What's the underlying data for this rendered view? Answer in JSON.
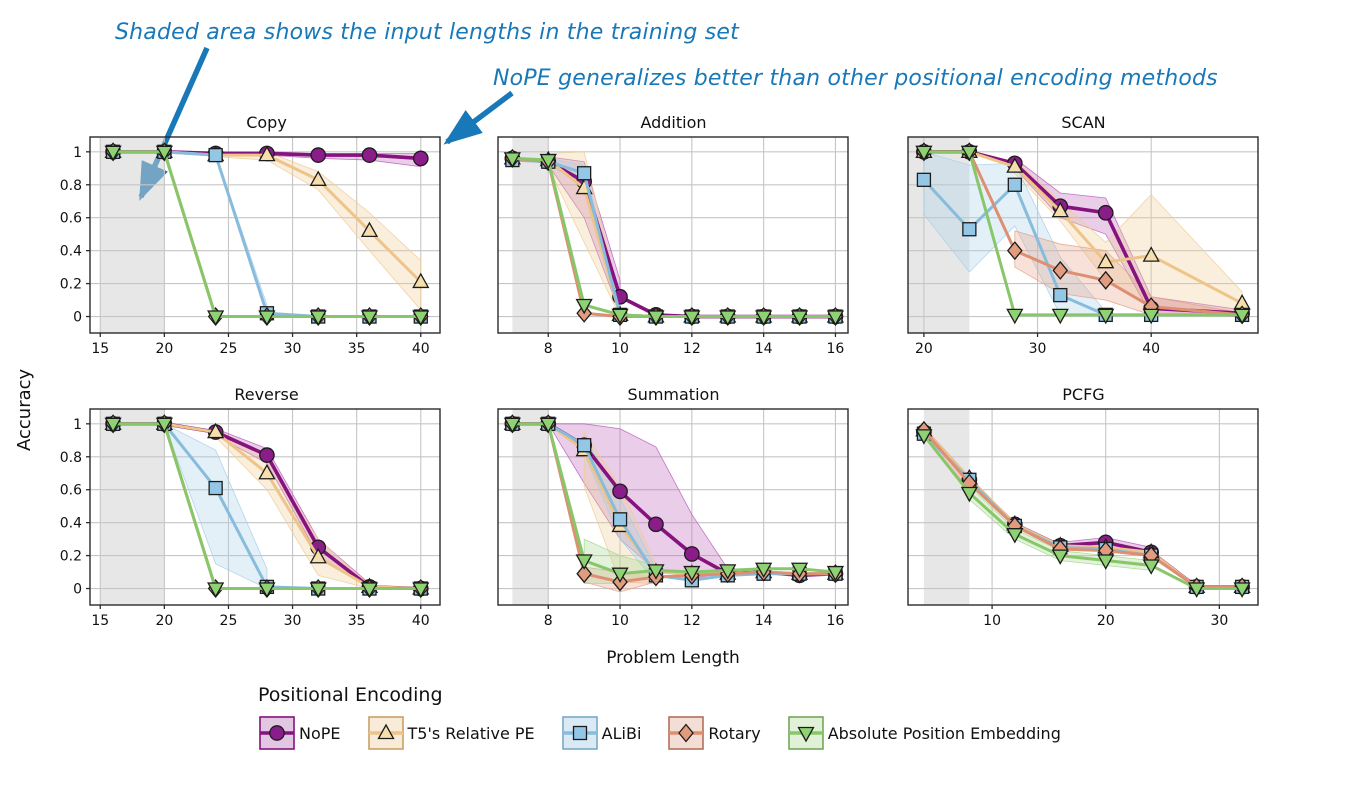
{
  "annotations": {
    "note1": "Shaded area shows the input lengths in the training set",
    "note2": "NoPE generalizes better than other positional encoding methods",
    "color": "#1878b8"
  },
  "ylabel": "Accuracy",
  "xlabel": "Problem Length",
  "legend": {
    "title": "Positional Encoding",
    "order": [
      "nope",
      "t5",
      "alibi",
      "rotary",
      "ape"
    ]
  },
  "series_styles": {
    "nope": {
      "label": "NoPE",
      "marker": "circle",
      "line": "#85127d",
      "fill": "#8a1d8a",
      "band": "#bb62bb",
      "swatch": "#e2c7e2",
      "swatch_border": "#85127d"
    },
    "t5": {
      "label": "T5's Relative PE",
      "marker": "triangle-up",
      "line": "#eec488",
      "fill": "#f7dfad",
      "band": "#efcd96",
      "swatch": "#f8ecd8",
      "swatch_border": "#c9a265"
    },
    "alibi": {
      "label": "ALiBi",
      "marker": "square",
      "line": "#88bcdd",
      "fill": "#93c7e5",
      "band": "#a9cfe8",
      "swatch": "#daeaf5",
      "swatch_border": "#7aa8c8"
    },
    "rotary": {
      "label": "Rotary",
      "marker": "diamond",
      "line": "#de8f72",
      "fill": "#e39b7f",
      "band": "#e5a287",
      "swatch": "#f3ded6",
      "swatch_border": "#b2705c"
    },
    "ape": {
      "label": "Absolute Position Embedding",
      "marker": "triangle-down",
      "line": "#87c76a",
      "fill": "#8fd273",
      "band": "#a5d88f",
      "swatch": "#e1f1d8",
      "swatch_border": "#72a85a"
    }
  },
  "style_hints": {
    "grid_color": "#c6c6c6",
    "border_color": "#2b2b2b",
    "shade_color": "#cfcfcf",
    "marker_edge": "#1c1c1c",
    "legend_position": "bottom",
    "grid": true
  },
  "chart_data": [
    {
      "type": "line",
      "title": "Copy",
      "show_yticks": true,
      "x": [
        16,
        20,
        24,
        28,
        32,
        36,
        40
      ],
      "xticks": [
        15,
        20,
        25,
        30,
        35,
        40
      ],
      "xlim": [
        14.2,
        41.5
      ],
      "yticks": [
        0,
        0.2,
        0.4,
        0.6,
        0.8,
        1
      ],
      "ylim": [
        -0.1,
        1.09
      ],
      "shade": [
        15,
        20
      ],
      "series": [
        {
          "key": "nope",
          "values": [
            1,
            1,
            0.99,
            0.99,
            0.98,
            0.98,
            0.96
          ],
          "band": [
            [
              28,
              1,
              0.98
            ],
            [
              32,
              0.99,
              0.96
            ],
            [
              36,
              0.99,
              0.95
            ],
            [
              40,
              0.99,
              0.91
            ]
          ]
        },
        {
          "key": "t5",
          "values": [
            1,
            1,
            0.98,
            0.98,
            0.83,
            0.52,
            0.21
          ],
          "band": [
            [
              24,
              1,
              0.97
            ],
            [
              28,
              1,
              0.95
            ],
            [
              32,
              0.88,
              0.77
            ],
            [
              36,
              0.63,
              0.4
            ],
            [
              40,
              0.34,
              0.04
            ]
          ]
        },
        {
          "key": "alibi",
          "values": [
            1,
            1,
            0.98,
            0.02,
            0,
            0,
            0
          ],
          "band": [
            [
              24,
              0.99,
              0.97
            ],
            [
              28,
              0.07,
              0
            ]
          ]
        },
        {
          "key": "rotary",
          "values": [
            1,
            1,
            0,
            0,
            0,
            0,
            0
          ]
        },
        {
          "key": "ape",
          "values": [
            1,
            1,
            0,
            0,
            0,
            0,
            0
          ]
        }
      ]
    },
    {
      "type": "line",
      "title": "Addition",
      "show_yticks": false,
      "x": [
        7,
        8,
        9,
        10,
        11,
        12,
        13,
        14,
        15,
        16
      ],
      "xticks": [
        8,
        10,
        12,
        14,
        16
      ],
      "xlim": [
        6.6,
        16.35
      ],
      "yticks": [
        0,
        0.2,
        0.4,
        0.6,
        0.8,
        1
      ],
      "ylim": [
        -0.1,
        1.09
      ],
      "shade": [
        7,
        8
      ],
      "series": [
        {
          "key": "nope",
          "values": [
            0.96,
            0.94,
            0.82,
            0.12,
            0.01,
            0,
            0,
            0,
            0,
            0
          ],
          "band": [
            [
              8,
              0.97,
              0.92
            ],
            [
              9,
              0.94,
              0.6
            ],
            [
              10,
              0.22,
              0.02
            ]
          ]
        },
        {
          "key": "t5",
          "values": [
            0.96,
            0.95,
            0.78,
            0.01,
            0,
            0,
            0,
            0,
            0,
            0
          ],
          "band": [
            [
              8,
              0.99,
              0.91
            ],
            [
              9,
              1.0,
              0.45
            ],
            [
              10,
              0.1,
              0
            ]
          ]
        },
        {
          "key": "alibi",
          "values": [
            0.95,
            0.94,
            0.87,
            0.01,
            0,
            0,
            0,
            0,
            0,
            0
          ],
          "band": [
            [
              8,
              0.96,
              0.92
            ],
            [
              9,
              0.92,
              0.8
            ],
            [
              10,
              0.03,
              0
            ]
          ]
        },
        {
          "key": "rotary",
          "values": [
            0.96,
            0.94,
            0.02,
            0,
            0,
            0,
            0,
            0,
            0,
            0
          ]
        },
        {
          "key": "ape",
          "values": [
            0.96,
            0.95,
            0.07,
            0.01,
            0,
            0,
            0,
            0,
            0,
            0
          ]
        }
      ]
    },
    {
      "type": "line",
      "title": "SCAN",
      "show_yticks": false,
      "x": [
        20,
        24,
        28,
        32,
        36,
        40,
        48
      ],
      "xticks": [
        20,
        30,
        40
      ],
      "xlim": [
        18.6,
        49.4
      ],
      "yticks": [
        0,
        0.2,
        0.4,
        0.6,
        0.8,
        1
      ],
      "ylim": [
        -0.1,
        1.09
      ],
      "shade": [
        18.6,
        24
      ],
      "series": [
        {
          "key": "nope",
          "values": [
            1,
            1,
            0.93,
            0.67,
            0.63,
            0.05,
            0.02
          ],
          "band": [
            [
              28,
              0.96,
              0.9
            ],
            [
              32,
              0.75,
              0.6
            ],
            [
              36,
              0.72,
              0.5
            ],
            [
              40,
              0.12,
              0.01
            ],
            [
              48,
              0.04,
              0
            ]
          ]
        },
        {
          "key": "t5",
          "values": [
            1,
            1,
            0.91,
            0.64,
            0.33,
            0.37,
            0.08
          ],
          "band": [
            [
              28,
              0.95,
              0.87
            ],
            [
              32,
              0.7,
              0.58
            ],
            [
              36,
              0.45,
              0.22
            ],
            [
              40,
              0.74,
              0.05
            ],
            [
              48,
              0.15,
              0.01
            ]
          ]
        },
        {
          "key": "alibi",
          "values": [
            0.83,
            0.53,
            0.8,
            0.13,
            0.01,
            0.01,
            0.01
          ],
          "band": [
            [
              20,
              1.0,
              0.62
            ],
            [
              24,
              0.92,
              0.27
            ],
            [
              28,
              0.93,
              0.55
            ],
            [
              32,
              0.36,
              0.01
            ],
            [
              36,
              0.03,
              0
            ]
          ]
        },
        {
          "key": "rotary",
          "values": [
            1,
            1,
            0.4,
            0.28,
            0.22,
            0.06,
            0.01
          ],
          "band": [
            [
              28,
              0.52,
              0.3
            ],
            [
              32,
              0.44,
              0.14
            ],
            [
              36,
              0.4,
              0.1
            ],
            [
              40,
              0.12,
              0.01
            ],
            [
              48,
              0.02,
              0
            ]
          ]
        },
        {
          "key": "ape",
          "values": [
            1,
            1,
            0.01,
            0.01,
            0.01,
            0.01,
            0.01
          ]
        }
      ]
    },
    {
      "type": "line",
      "title": "Reverse",
      "show_yticks": true,
      "x": [
        16,
        20,
        24,
        28,
        32,
        36,
        40
      ],
      "xticks": [
        15,
        20,
        25,
        30,
        35,
        40
      ],
      "xlim": [
        14.2,
        41.5
      ],
      "yticks": [
        0,
        0.2,
        0.4,
        0.6,
        0.8,
        1
      ],
      "ylim": [
        -0.1,
        1.09
      ],
      "shade": [
        15,
        20
      ],
      "series": [
        {
          "key": "nope",
          "values": [
            1,
            1,
            0.95,
            0.81,
            0.25,
            0.01,
            0
          ],
          "band": [
            [
              24,
              0.97,
              0.93
            ],
            [
              28,
              0.85,
              0.76
            ],
            [
              32,
              0.3,
              0.2
            ],
            [
              36,
              0.03,
              0
            ]
          ]
        },
        {
          "key": "t5",
          "values": [
            1,
            1,
            0.95,
            0.7,
            0.19,
            0.01,
            0
          ],
          "band": [
            [
              24,
              0.97,
              0.92
            ],
            [
              28,
              0.79,
              0.6
            ],
            [
              32,
              0.3,
              0.08
            ],
            [
              36,
              0.02,
              0
            ]
          ]
        },
        {
          "key": "alibi",
          "values": [
            1,
            1,
            0.61,
            0.01,
            0,
            0,
            0
          ],
          "band": [
            [
              20,
              1,
              1
            ],
            [
              24,
              0.84,
              0.15
            ],
            [
              28,
              0.12,
              0
            ]
          ]
        },
        {
          "key": "rotary",
          "values": [
            1,
            1,
            0,
            0,
            0,
            0,
            0
          ]
        },
        {
          "key": "ape",
          "values": [
            1,
            1,
            0,
            0,
            0,
            0,
            0
          ]
        }
      ]
    },
    {
      "type": "line",
      "title": "Summation",
      "show_yticks": false,
      "x": [
        7,
        8,
        9,
        10,
        11,
        12,
        13,
        14,
        15,
        16
      ],
      "xticks": [
        8,
        10,
        12,
        14,
        16
      ],
      "xlim": [
        6.6,
        16.35
      ],
      "yticks": [
        0,
        0.2,
        0.4,
        0.6,
        0.8,
        1
      ],
      "ylim": [
        -0.1,
        1.09
      ],
      "shade": [
        7,
        8
      ],
      "series": [
        {
          "key": "nope",
          "values": [
            1,
            1,
            0.87,
            0.59,
            0.39,
            0.21,
            0.09,
            0.1,
            0.08,
            0.09
          ],
          "band": [
            [
              8,
              1,
              1
            ],
            [
              9,
              1.0,
              0.64
            ],
            [
              10,
              0.97,
              0.3
            ],
            [
              11,
              0.86,
              0.11
            ],
            [
              12,
              0.45,
              0.07
            ],
            [
              13,
              0.12,
              0.07
            ]
          ]
        },
        {
          "key": "t5",
          "values": [
            1,
            1,
            0.84,
            0.38,
            0.1,
            0.09,
            0.09,
            0.1,
            0.09,
            0.09
          ],
          "band": [
            [
              9,
              0.95,
              0.62
            ],
            [
              10,
              0.62,
              0.04
            ],
            [
              11,
              0.15,
              0.03
            ]
          ]
        },
        {
          "key": "alibi",
          "values": [
            1,
            1,
            0.87,
            0.42,
            0.08,
            0.05,
            0.08,
            0.09,
            0.09,
            0.09
          ],
          "band": [
            [
              9,
              0.92,
              0.82
            ],
            [
              10,
              0.55,
              0.3
            ],
            [
              11,
              0.12,
              0.04
            ]
          ]
        },
        {
          "key": "rotary",
          "values": [
            1,
            1,
            0.09,
            0.04,
            0.07,
            0.08,
            0.09,
            0.1,
            0.09,
            0.09
          ],
          "band": [
            [
              9,
              0.13,
              0.04
            ],
            [
              10,
              0.1,
              -0.02
            ],
            [
              11,
              0.1,
              0.04
            ]
          ]
        },
        {
          "key": "ape",
          "values": [
            1,
            1,
            0.17,
            0.09,
            0.11,
            0.1,
            0.11,
            0.12,
            0.12,
            0.1
          ],
          "band": [
            [
              9,
              0.3,
              0.03
            ],
            [
              10,
              0.2,
              0.03
            ],
            [
              11,
              0.14,
              0.08
            ]
          ]
        }
      ]
    },
    {
      "type": "line",
      "title": "PCFG",
      "show_yticks": false,
      "x": [
        4,
        8,
        12,
        16,
        20,
        24,
        28,
        32
      ],
      "xticks": [
        10,
        20,
        30
      ],
      "xlim": [
        2.6,
        33.4
      ],
      "yticks": [
        0,
        0.2,
        0.4,
        0.6,
        0.8,
        1
      ],
      "ylim": [
        -0.1,
        1.09
      ],
      "shade": [
        4,
        8
      ],
      "series": [
        {
          "key": "nope",
          "values": [
            0.95,
            0.66,
            0.39,
            0.26,
            0.28,
            0.22,
            0.01,
            0.01
          ],
          "band": [
            [
              16,
              0.28,
              0.24
            ],
            [
              20,
              0.31,
              0.24
            ],
            [
              24,
              0.25,
              0.19
            ]
          ]
        },
        {
          "key": "t5",
          "values": [
            0.96,
            0.67,
            0.39,
            0.26,
            0.25,
            0.22,
            0.01,
            0.01
          ]
        },
        {
          "key": "alibi",
          "values": [
            0.94,
            0.66,
            0.38,
            0.25,
            0.24,
            0.2,
            0.01,
            0.01
          ]
        },
        {
          "key": "rotary",
          "values": [
            0.96,
            0.64,
            0.38,
            0.24,
            0.23,
            0.2,
            0.01,
            0.01
          ],
          "band": [
            [
              4,
              0.98,
              0.93
            ],
            [
              8,
              0.68,
              0.6
            ]
          ]
        },
        {
          "key": "ape",
          "values": [
            0.93,
            0.58,
            0.33,
            0.2,
            0.17,
            0.14,
            0,
            0
          ],
          "band": [
            [
              8,
              0.62,
              0.54
            ],
            [
              12,
              0.36,
              0.3
            ],
            [
              16,
              0.23,
              0.17
            ],
            [
              20,
              0.2,
              0.14
            ],
            [
              24,
              0.17,
              0.11
            ]
          ]
        }
      ]
    }
  ]
}
